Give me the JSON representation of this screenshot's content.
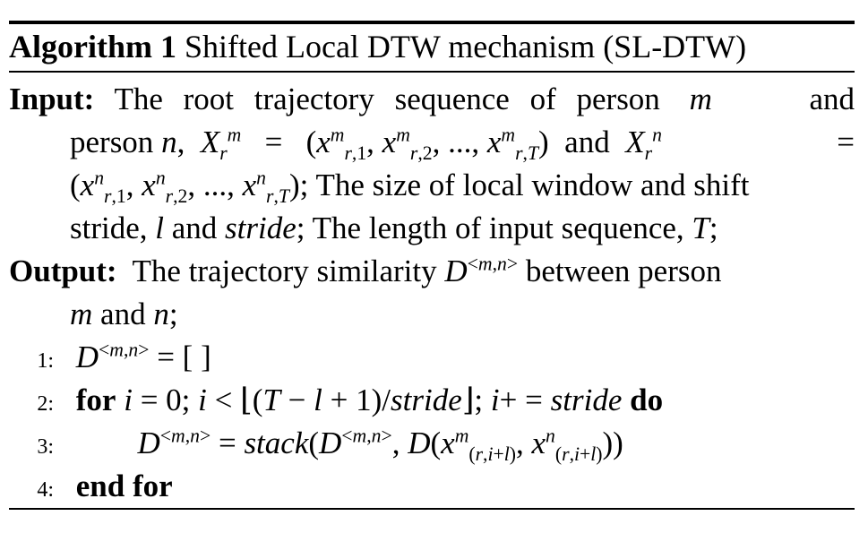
{
  "algorithm": {
    "label": "Algorithm 1",
    "title": "Shifted Local DTW mechanism (SL-DTW)"
  },
  "input": {
    "keyword": "Input:",
    "text_1": "The root trajectory sequence of person",
    "var_m": "m",
    "and": "and",
    "text_person": "person",
    "var_n": "n",
    "text_sizes": "; The size of local window and shift",
    "text_stride": "stride,",
    "var_l": "l",
    "var_stride": "stride",
    "text_length": "; The length of input sequence,",
    "var_T": "T"
  },
  "output": {
    "keyword": "Output:",
    "text_1": "The trajectory similarity",
    "text_between": "between person",
    "var_m": "m",
    "and": "and",
    "var_n": "n"
  },
  "steps": [
    {
      "num": "1:"
    },
    {
      "num": "2:",
      "for_kw": "for",
      "do_kw": "do"
    },
    {
      "num": "3:"
    },
    {
      "num": "4:",
      "end_kw": "end for"
    }
  ]
}
